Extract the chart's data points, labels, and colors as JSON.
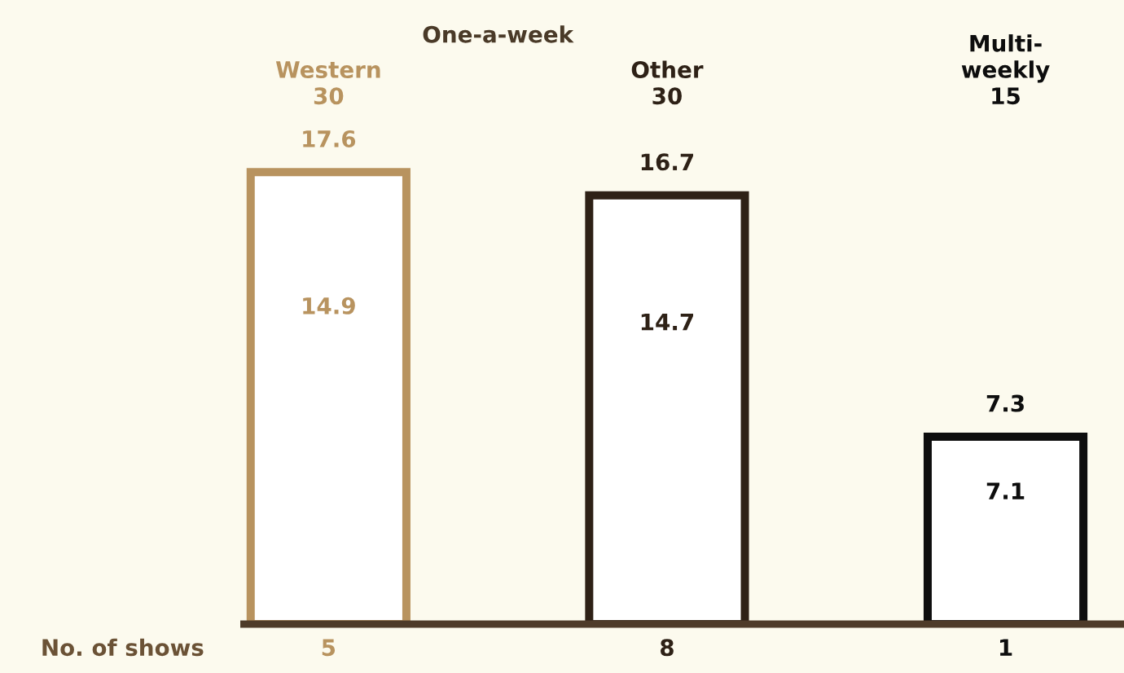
{
  "chart_data": {
    "type": "bar",
    "categories": [
      "Western\n30",
      "Other\n30",
      "Multi-\nweekly\n15"
    ],
    "values": [
      17.6,
      16.7,
      7.3
    ],
    "colors": [
      "#b8935f",
      "#2e2116",
      "#0d0d0d"
    ],
    "data_labels": true,
    "tick_labels": "x",
    "xlabel": "No. of shows",
    "annotations": [
      "One-a-week",
      "14.9",
      "14.7",
      "7.1",
      "5",
      "8",
      "1"
    ],
    "grid": false
  }
}
